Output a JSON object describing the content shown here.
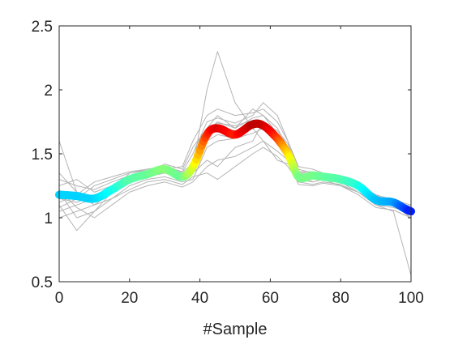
{
  "chart_data": {
    "type": "line",
    "title": "",
    "xlabel": "#Sample",
    "ylabel": "",
    "xlim": [
      0,
      100
    ],
    "ylim": [
      0.5,
      2.5
    ],
    "xticks": [
      0,
      20,
      40,
      60,
      80,
      100
    ],
    "xtick_labels": [
      "0",
      "20",
      "40",
      "60",
      "80",
      "100"
    ],
    "yticks": [
      0.5,
      1,
      1.5,
      2,
      2.5
    ],
    "ytick_labels": [
      "0.5",
      "1",
      "1.5",
      "2",
      "2.5"
    ],
    "grid": false,
    "box": true,
    "colors": {
      "background_series": "#b4b4b4",
      "axes": "#262626",
      "mean_colormap": [
        "#0000ff",
        "#00a0ff",
        "#00ffff",
        "#7fff7f",
        "#ffff00",
        "#ff7f00",
        "#ff0000",
        "#b00000"
      ]
    },
    "x": [
      0,
      5,
      10,
      15,
      20,
      25,
      30,
      35,
      38,
      42,
      45,
      50,
      55,
      58,
      62,
      65,
      68,
      72,
      75,
      80,
      85,
      90,
      95,
      100
    ],
    "mean_series": {
      "values": [
        1.18,
        1.17,
        1.15,
        1.22,
        1.3,
        1.34,
        1.38,
        1.32,
        1.4,
        1.65,
        1.7,
        1.65,
        1.73,
        1.72,
        1.62,
        1.5,
        1.32,
        1.33,
        1.32,
        1.3,
        1.25,
        1.14,
        1.12,
        1.05
      ],
      "intensity": [
        0.22,
        0.22,
        0.22,
        0.3,
        0.38,
        0.4,
        0.44,
        0.4,
        0.52,
        0.8,
        0.92,
        0.82,
        0.98,
        0.96,
        0.8,
        0.62,
        0.42,
        0.42,
        0.4,
        0.38,
        0.33,
        0.2,
        0.15,
        0.02
      ]
    },
    "series": [
      {
        "values": [
          1.6,
          1.2,
          1.1,
          1.2,
          1.3,
          1.33,
          1.36,
          1.3,
          1.4,
          2.0,
          2.3,
          1.9,
          1.7,
          1.6,
          1.45,
          1.42,
          1.35,
          1.28,
          1.3,
          1.28,
          1.2,
          1.12,
          1.1,
          1.0
        ]
      },
      {
        "values": [
          1.2,
          1.0,
          1.05,
          1.15,
          1.25,
          1.3,
          1.32,
          1.28,
          1.3,
          1.55,
          1.6,
          1.62,
          1.7,
          1.75,
          1.6,
          1.45,
          1.3,
          1.28,
          1.3,
          1.32,
          1.28,
          1.15,
          1.12,
          1.05
        ]
      },
      {
        "values": [
          1.1,
          0.9,
          1.05,
          1.2,
          1.35,
          1.38,
          1.4,
          1.35,
          1.4,
          1.7,
          1.8,
          1.7,
          1.85,
          1.8,
          1.7,
          1.55,
          1.3,
          1.35,
          1.3,
          1.25,
          1.2,
          1.1,
          1.05,
          0.55
        ]
      },
      {
        "values": [
          1.25,
          1.3,
          1.2,
          1.25,
          1.32,
          1.35,
          1.38,
          1.4,
          1.6,
          1.8,
          1.85,
          1.8,
          1.82,
          1.85,
          1.75,
          1.6,
          1.4,
          1.38,
          1.35,
          1.32,
          1.25,
          1.18,
          1.1,
          1.05
        ]
      },
      {
        "values": [
          1.05,
          1.1,
          1.15,
          1.25,
          1.3,
          1.34,
          1.36,
          1.33,
          1.35,
          1.45,
          1.4,
          1.55,
          1.6,
          1.75,
          1.65,
          1.5,
          1.32,
          1.3,
          1.32,
          1.3,
          1.22,
          1.15,
          1.1,
          1.02
        ]
      },
      {
        "values": [
          1.15,
          1.12,
          1.18,
          1.22,
          1.28,
          1.32,
          1.35,
          1.3,
          1.45,
          1.65,
          1.72,
          1.68,
          1.7,
          1.72,
          1.6,
          1.52,
          1.35,
          1.33,
          1.3,
          1.28,
          1.24,
          1.16,
          1.12,
          1.08
        ]
      },
      {
        "values": [
          1.3,
          1.25,
          1.22,
          1.28,
          1.33,
          1.36,
          1.4,
          1.36,
          1.5,
          1.75,
          1.78,
          1.74,
          1.8,
          1.9,
          1.8,
          1.6,
          1.38,
          1.35,
          1.34,
          1.3,
          1.26,
          1.18,
          1.14,
          1.1
        ]
      },
      {
        "values": [
          1.0,
          1.05,
          1.1,
          1.15,
          1.22,
          1.28,
          1.3,
          1.26,
          1.32,
          1.35,
          1.3,
          1.4,
          1.5,
          1.55,
          1.48,
          1.4,
          1.28,
          1.26,
          1.28,
          1.26,
          1.2,
          1.1,
          1.08,
          1.04
        ]
      },
      {
        "values": [
          1.35,
          1.2,
          1.12,
          1.2,
          1.3,
          1.34,
          1.42,
          1.38,
          1.55,
          1.7,
          1.74,
          1.72,
          1.76,
          1.74,
          1.68,
          1.58,
          1.36,
          1.34,
          1.33,
          1.3,
          1.24,
          1.14,
          1.12,
          1.06
        ]
      },
      {
        "values": [
          1.08,
          1.15,
          1.25,
          1.3,
          1.35,
          1.37,
          1.38,
          1.34,
          1.4,
          1.6,
          1.65,
          1.62,
          1.66,
          1.7,
          1.58,
          1.46,
          1.33,
          1.32,
          1.31,
          1.29,
          1.22,
          1.13,
          1.1,
          1.03
        ]
      },
      {
        "values": [
          1.22,
          1.08,
          1.0,
          1.1,
          1.2,
          1.25,
          1.28,
          1.24,
          1.28,
          1.4,
          1.45,
          1.48,
          1.55,
          1.6,
          1.52,
          1.45,
          1.26,
          1.25,
          1.27,
          1.25,
          1.18,
          1.08,
          1.06,
          1.0
        ]
      },
      {
        "values": [
          1.12,
          1.18,
          1.28,
          1.32,
          1.36,
          1.38,
          1.4,
          1.36,
          1.42,
          1.68,
          1.75,
          1.7,
          1.78,
          1.8,
          1.66,
          1.5,
          1.36,
          1.36,
          1.34,
          1.32,
          1.27,
          1.17,
          1.13,
          1.09
        ]
      }
    ]
  }
}
